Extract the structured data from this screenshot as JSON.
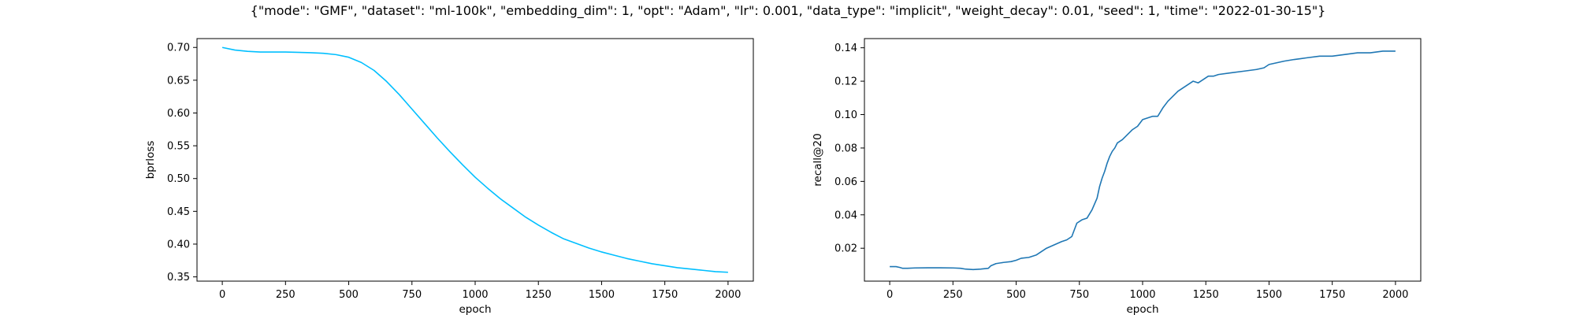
{
  "suptitle": "{\"mode\": \"GMF\", \"dataset\": \"ml-100k\", \"embedding_dim\": 1, \"opt\": \"Adam\", \"lr\": 0.001, \"data_type\": \"implicit\", \"weight_decay\": 0.01, \"seed\": 1, \"time\": \"2022-01-30-15\"}",
  "chart_data": [
    {
      "type": "line",
      "title": "",
      "xlabel": "epoch",
      "ylabel": "bprloss",
      "xlim": [
        -100,
        2100
      ],
      "ylim": [
        0.3435,
        0.7135
      ],
      "xticks": [
        0,
        250,
        500,
        750,
        1000,
        1250,
        1500,
        1750,
        2000
      ],
      "yticks": [
        0.35,
        0.4,
        0.45,
        0.5,
        0.55,
        0.6,
        0.65,
        0.7
      ],
      "ytick_labels": [
        "0.35",
        "0.40",
        "0.45",
        "0.50",
        "0.55",
        "0.60",
        "0.65",
        "0.70"
      ],
      "color": "#00bfff",
      "series": [
        {
          "x": [
            0,
            50,
            100,
            150,
            250,
            350,
            400,
            450,
            500,
            550,
            600,
            650,
            700,
            750,
            800,
            850,
            900,
            950,
            1000,
            1050,
            1100,
            1150,
            1200,
            1250,
            1300,
            1350,
            1400,
            1450,
            1500,
            1550,
            1600,
            1650,
            1700,
            1750,
            1800,
            1850,
            1900,
            1950,
            2000
          ],
          "y": [
            0.7,
            0.696,
            0.694,
            0.693,
            0.693,
            0.692,
            0.691,
            0.689,
            0.685,
            0.677,
            0.665,
            0.648,
            0.628,
            0.606,
            0.584,
            0.562,
            0.541,
            0.521,
            0.502,
            0.485,
            0.469,
            0.455,
            0.441,
            0.429,
            0.418,
            0.408,
            0.401,
            0.394,
            0.388,
            0.383,
            0.378,
            0.374,
            0.37,
            0.367,
            0.364,
            0.362,
            0.36,
            0.358,
            0.357
          ]
        }
      ]
    },
    {
      "type": "line",
      "title": "",
      "xlabel": "epoch",
      "ylabel": "recall@20",
      "xlim": [
        -100,
        2100
      ],
      "ylim": [
        0.0003,
        0.1455
      ],
      "xticks": [
        0,
        250,
        500,
        750,
        1000,
        1250,
        1500,
        1750,
        2000
      ],
      "yticks": [
        0.02,
        0.04,
        0.06,
        0.08,
        0.1,
        0.12,
        0.14
      ],
      "ytick_labels": [
        "0.02",
        "0.04",
        "0.06",
        "0.08",
        "0.10",
        "0.12",
        "0.14"
      ],
      "color": "#1f77b4",
      "series": [
        {
          "x": [
            0,
            25,
            40,
            50,
            70,
            100,
            150,
            200,
            250,
            280,
            300,
            330,
            360,
            390,
            400,
            420,
            450,
            480,
            500,
            520,
            550,
            580,
            600,
            620,
            650,
            680,
            700,
            720,
            730,
            740,
            760,
            780,
            800,
            820,
            830,
            840,
            850,
            860,
            870,
            880,
            890,
            900,
            920,
            940,
            960,
            980,
            1000,
            1020,
            1040,
            1060,
            1080,
            1100,
            1120,
            1140,
            1160,
            1180,
            1200,
            1220,
            1230,
            1240,
            1260,
            1280,
            1300,
            1350,
            1400,
            1450,
            1480,
            1500,
            1530,
            1560,
            1600,
            1650,
            1700,
            1750,
            1800,
            1850,
            1900,
            1950,
            2000
          ],
          "y": [
            0.009,
            0.009,
            0.0085,
            0.008,
            0.008,
            0.0082,
            0.0083,
            0.0083,
            0.0082,
            0.008,
            0.0075,
            0.0072,
            0.0075,
            0.008,
            0.0095,
            0.0108,
            0.0115,
            0.012,
            0.0128,
            0.014,
            0.0145,
            0.016,
            0.018,
            0.02,
            0.022,
            0.024,
            0.025,
            0.027,
            0.031,
            0.035,
            0.037,
            0.038,
            0.043,
            0.05,
            0.057,
            0.062,
            0.066,
            0.071,
            0.075,
            0.078,
            0.08,
            0.083,
            0.085,
            0.088,
            0.091,
            0.093,
            0.097,
            0.098,
            0.099,
            0.099,
            0.104,
            0.108,
            0.111,
            0.114,
            0.116,
            0.118,
            0.12,
            0.119,
            0.12,
            0.121,
            0.123,
            0.123,
            0.124,
            0.125,
            0.126,
            0.127,
            0.128,
            0.13,
            0.131,
            0.132,
            0.133,
            0.134,
            0.135,
            0.135,
            0.136,
            0.137,
            0.137,
            0.138,
            0.138
          ]
        }
      ]
    }
  ]
}
